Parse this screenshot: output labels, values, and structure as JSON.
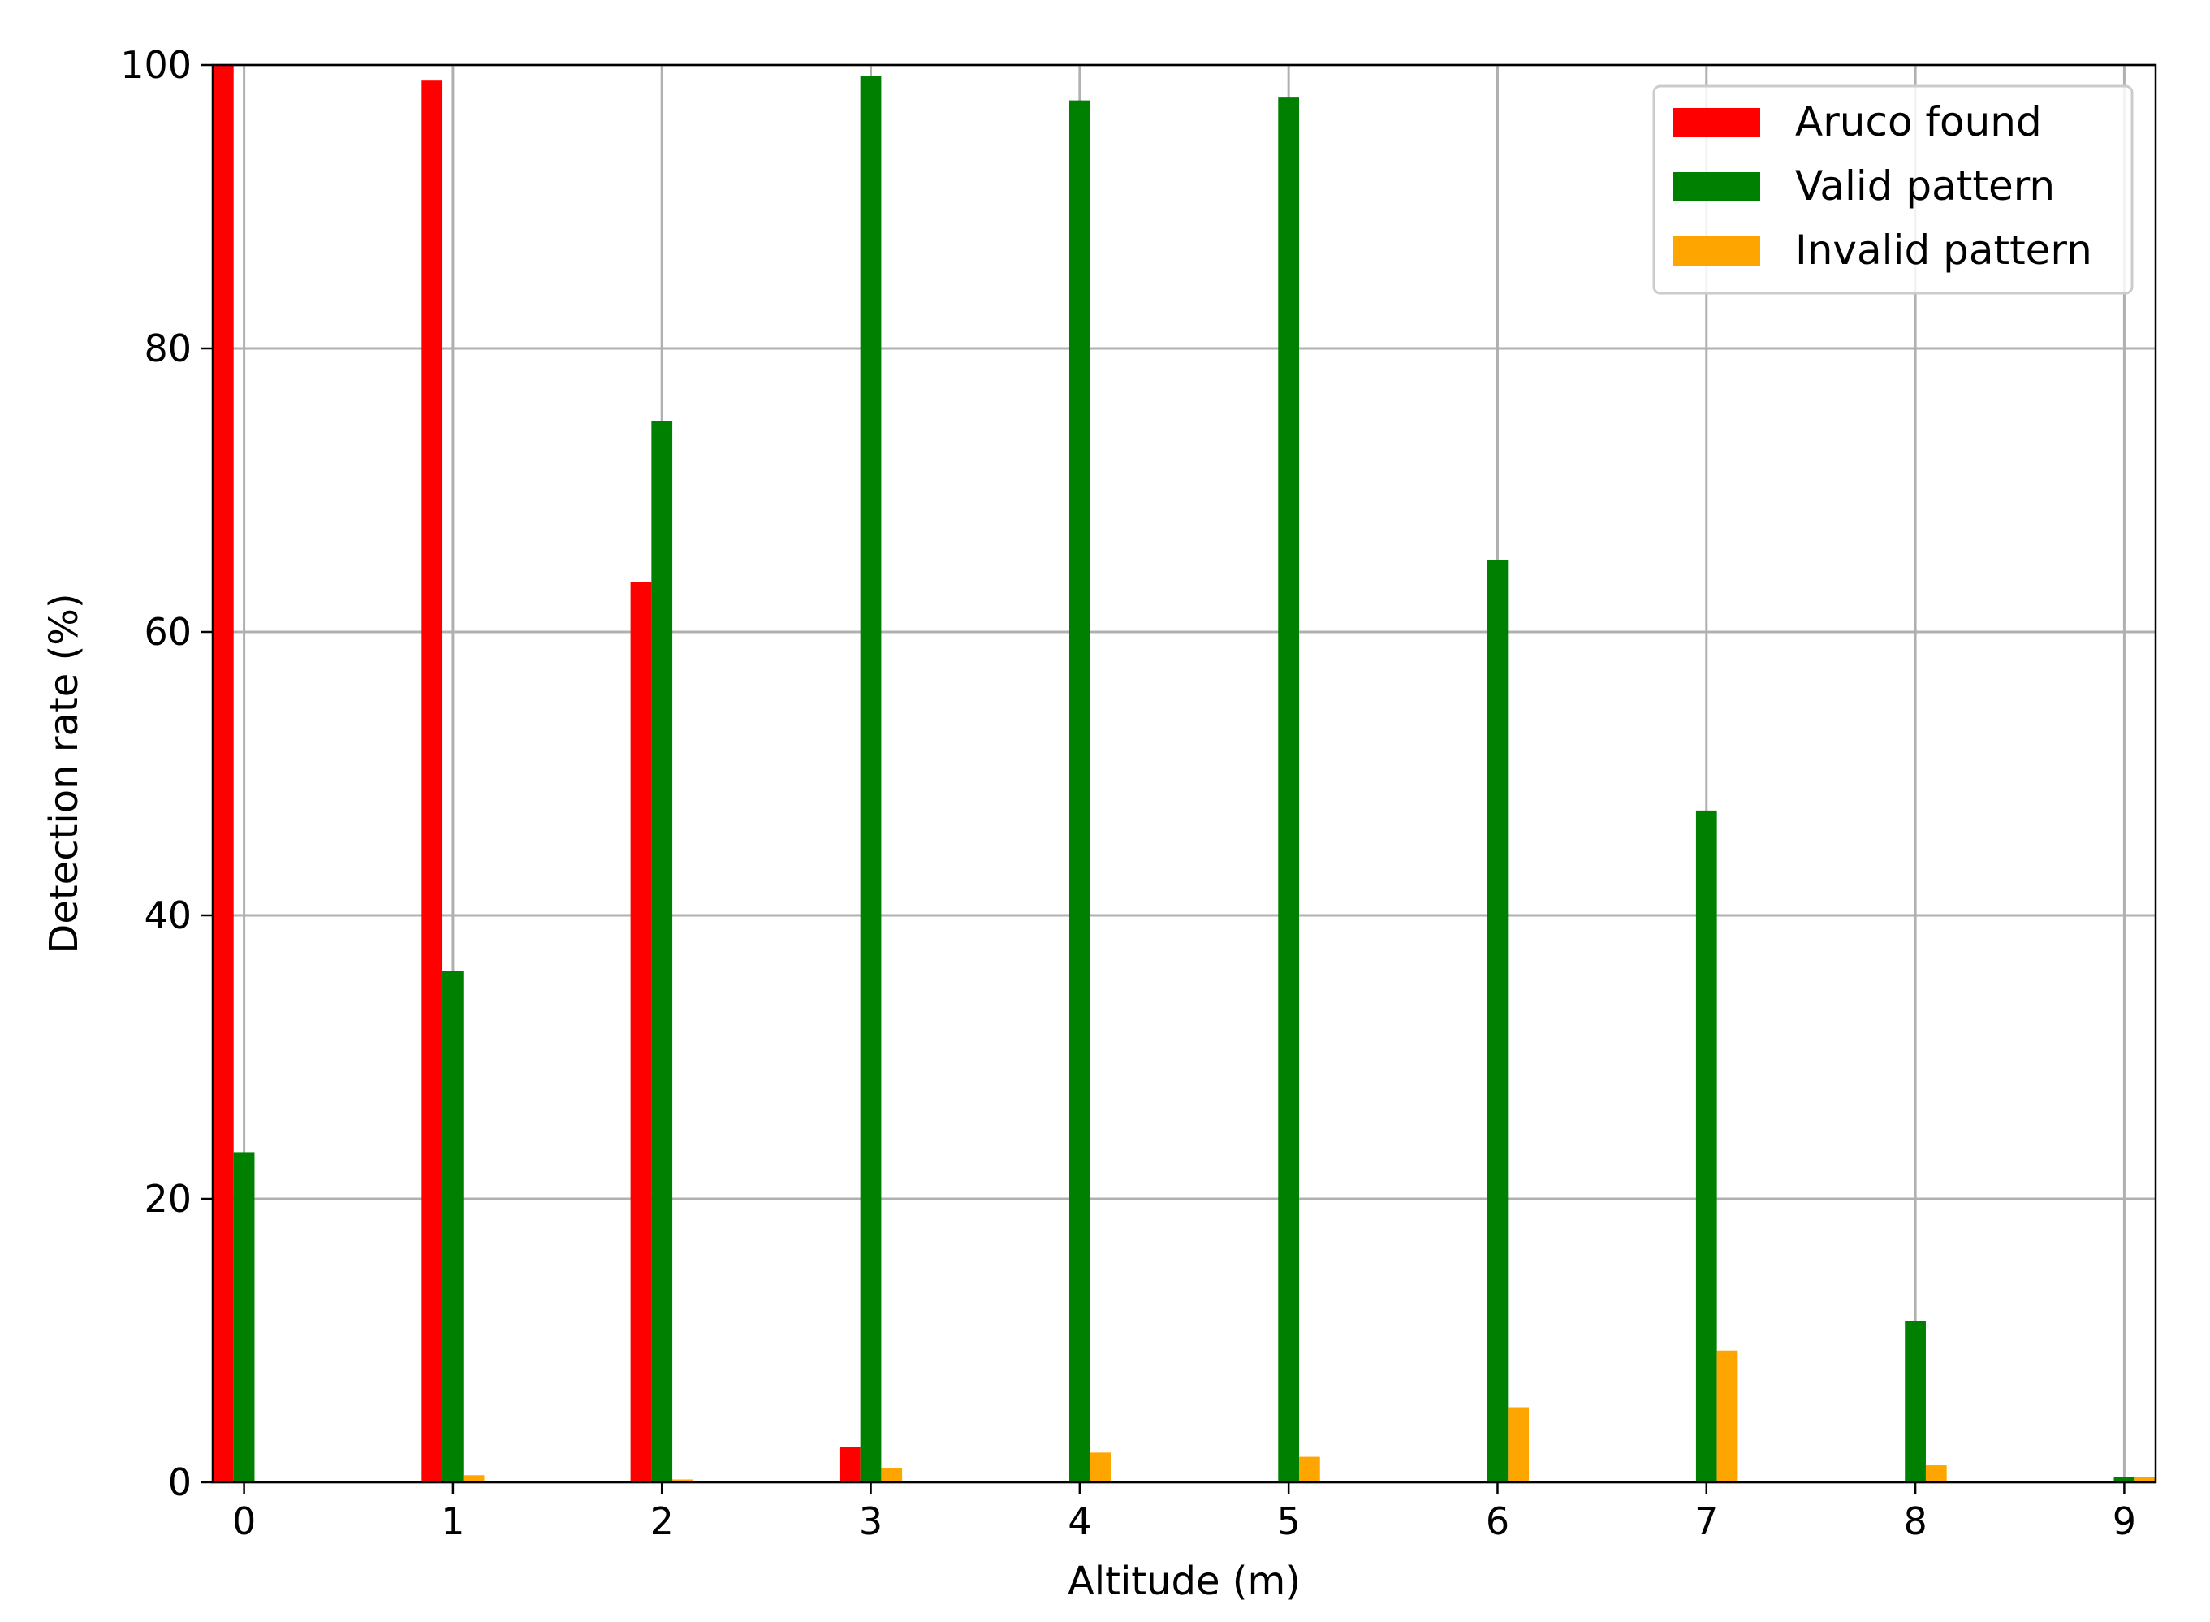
{
  "chart_data": {
    "type": "bar",
    "categories": [
      "0",
      "1",
      "2",
      "3",
      "4",
      "5",
      "6",
      "7",
      "8",
      "9"
    ],
    "x": [
      0,
      1,
      2,
      3,
      4,
      5,
      6,
      7,
      8,
      9
    ],
    "series": [
      {
        "name": "Aruco found",
        "color": "#ff0000",
        "values": [
          100,
          98.9,
          63.5,
          2.5,
          0,
          0,
          0,
          0,
          0,
          0
        ]
      },
      {
        "name": "Valid pattern",
        "color": "#008000",
        "values": [
          23.3,
          36.1,
          74.9,
          99.2,
          97.5,
          97.7,
          65.1,
          47.4,
          11.4,
          0.4
        ]
      },
      {
        "name": "Invalid pattern",
        "color": "#ffa500",
        "values": [
          0,
          0.5,
          0.2,
          1.0,
          2.1,
          1.8,
          5.3,
          9.3,
          1.2,
          0.4
        ]
      }
    ],
    "xlabel": "Altitude (m)",
    "ylabel": "Detection rate (%)",
    "xlim": [
      -0.15,
      9.15
    ],
    "ylim": [
      0,
      100
    ],
    "yticks": [
      0,
      20,
      40,
      60,
      80,
      100
    ],
    "grid": true,
    "legend_position": "top-right"
  }
}
